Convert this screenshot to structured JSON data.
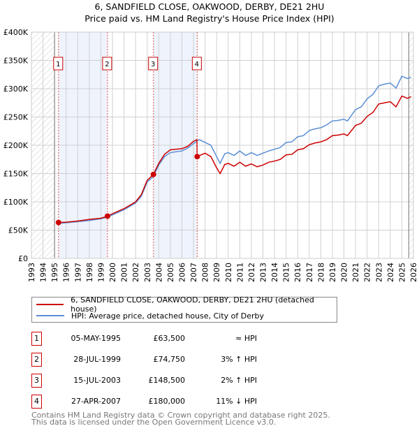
{
  "header": {
    "title": "6, SANDFIELD CLOSE, OAKWOOD, DERBY, DE21 2HU",
    "subtitle": "Price paid vs. HM Land Registry's House Price Index (HPI)"
  },
  "colors": {
    "property": "#cc0000",
    "hpi": "#5b8fd6"
  },
  "chart_data": {
    "type": "line",
    "title": "6, SANDFIELD CLOSE, OAKWOOD, DERBY, DE21 2HU — Price paid vs. HM Land Registry's House Price Index (HPI)",
    "xlim": [
      1993,
      2026
    ],
    "ylim": [
      0,
      400000
    ],
    "yticks": [
      "£0",
      "£50K",
      "£100K",
      "£150K",
      "£200K",
      "£250K",
      "£300K",
      "£350K",
      "£400K"
    ],
    "xticks": [
      "1993",
      "1994",
      "1995",
      "1996",
      "1997",
      "1998",
      "1999",
      "2000",
      "2001",
      "2002",
      "2003",
      "2004",
      "2005",
      "2006",
      "2007",
      "2008",
      "2009",
      "2010",
      "2011",
      "2012",
      "2013",
      "2014",
      "2015",
      "2016",
      "2017",
      "2018",
      "2019",
      "2020",
      "2021",
      "2022",
      "2023",
      "2024",
      "2025",
      "2026"
    ],
    "series": [
      {
        "name": "6, SANDFIELD CLOSE, OAKWOOD, DERBY, DE21 2HU (detached house)",
        "x": [
          1995.34,
          1996,
          1997,
          1998,
          1999,
          1999.57,
          2000,
          2001,
          2002,
          2002.5,
          2003,
          2003.54,
          2004,
          2004.5,
          2005,
          2006,
          2006.5,
          2007,
          2007.3,
          2007.32,
          2008,
          2008.5,
          2009,
          2009.3,
          2009.7,
          2010,
          2010.5,
          2011,
          2011.5,
          2012,
          2012.5,
          2013,
          2013.5,
          2014,
          2014.5,
          2015,
          2015.5,
          2016,
          2016.5,
          2017,
          2017.5,
          2018,
          2018.5,
          2019,
          2019.5,
          2020,
          2020.3,
          2021,
          2021.5,
          2022,
          2022.5,
          2023,
          2023.5,
          2024,
          2024.5,
          2025,
          2025.5,
          2025.8
        ],
        "values": [
          63500,
          64000,
          66000,
          69000,
          71000,
          74750,
          79000,
          88000,
          100000,
          113000,
          138000,
          148500,
          168000,
          184000,
          192000,
          194000,
          198000,
          207000,
          210000,
          180000,
          186000,
          180000,
          160000,
          150000,
          166000,
          168000,
          163000,
          170000,
          163000,
          167000,
          162000,
          165000,
          170000,
          172000,
          175000,
          183000,
          184000,
          192000,
          194000,
          201000,
          204000,
          206000,
          210000,
          217000,
          218000,
          220000,
          217000,
          235000,
          239000,
          251000,
          258000,
          273000,
          275000,
          277000,
          268000,
          287000,
          283000,
          286000
        ]
      },
      {
        "name": "HPI: Average price, detached house, City of Derby",
        "x": [
          1995.34,
          1996,
          1997,
          1998,
          1999,
          1999.57,
          2000,
          2001,
          2002,
          2002.5,
          2003,
          2003.54,
          2004,
          2004.5,
          2005,
          2006,
          2006.5,
          2007,
          2007.5,
          2008,
          2008.5,
          2009,
          2009.3,
          2009.7,
          2010,
          2010.5,
          2011,
          2011.5,
          2012,
          2012.5,
          2013,
          2013.5,
          2014,
          2014.5,
          2015,
          2015.5,
          2016,
          2016.5,
          2017,
          2017.5,
          2018,
          2018.5,
          2019,
          2019.5,
          2020,
          2020.3,
          2021,
          2021.5,
          2022,
          2022.5,
          2023,
          2023.5,
          2024,
          2024.5,
          2025,
          2025.5,
          2025.8
        ],
        "values": [
          62000,
          63000,
          65000,
          67000,
          70000,
          73000,
          77000,
          86000,
          98000,
          110000,
          135000,
          145000,
          165000,
          180000,
          187000,
          190000,
          195000,
          203000,
          210000,
          205000,
          200000,
          180000,
          168000,
          185000,
          187000,
          182000,
          190000,
          182000,
          187000,
          182000,
          186000,
          190000,
          193000,
          196000,
          205000,
          206000,
          215000,
          217000,
          226000,
          229000,
          231000,
          236000,
          243000,
          244000,
          246000,
          243000,
          263000,
          268000,
          282000,
          290000,
          305000,
          308000,
          310000,
          301000,
          322000,
          318000,
          320000
        ]
      }
    ],
    "sales": [
      {
        "id": "1",
        "x": 1995.34,
        "price": 63500,
        "date": "05-MAY-1995",
        "price_label": "£63,500",
        "hpi": "≈ HPI"
      },
      {
        "id": "2",
        "x": 1999.57,
        "price": 74750,
        "date": "28-JUL-1999",
        "price_label": "£74,750",
        "hpi": "3% ↑ HPI"
      },
      {
        "id": "3",
        "x": 2003.54,
        "price": 148500,
        "date": "15-JUL-2003",
        "price_label": "£148,500",
        "hpi": "2% ↑ HPI"
      },
      {
        "id": "4",
        "x": 2007.32,
        "price": 180000,
        "date": "27-APR-2007",
        "price_label": "£180,000",
        "hpi": "11% ↓ HPI"
      }
    ],
    "shaded_ranges": [
      [
        1995.34,
        1999.57
      ],
      [
        2003.54,
        2007.32
      ]
    ],
    "hatched_ranges": [
      [
        1993,
        1995
      ],
      [
        2025.6,
        2026
      ]
    ],
    "legend": "below"
  },
  "legend": {
    "property": "6, SANDFIELD CLOSE, OAKWOOD, DERBY, DE21 2HU (detached house)",
    "hpi": "HPI: Average price, detached house, City of Derby"
  },
  "footer": {
    "line1": "Contains HM Land Registry data © Crown copyright and database right 2025.",
    "line2": "This data is licensed under the Open Government Licence v3.0."
  }
}
